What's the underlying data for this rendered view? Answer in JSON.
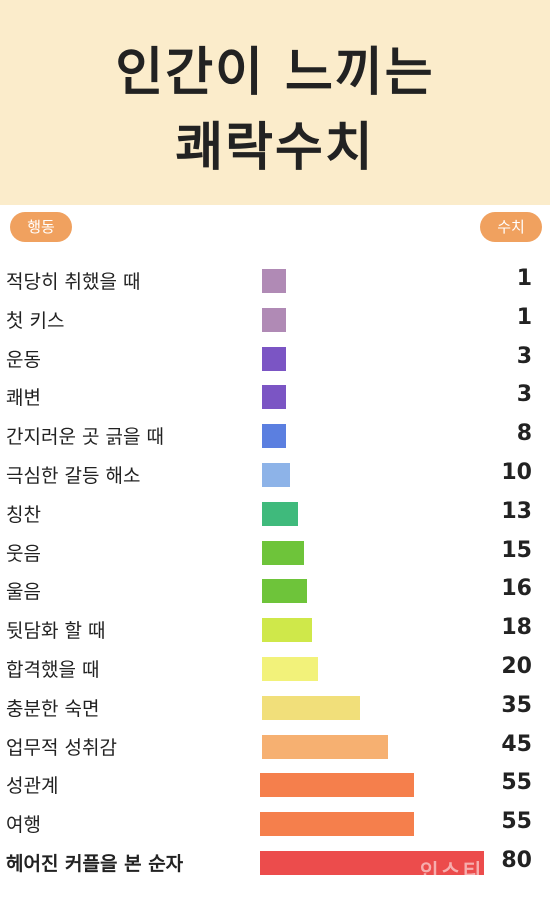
{
  "title": {
    "line1": "인간이 느끼는",
    "line2": "쾌락수치"
  },
  "columns": {
    "left": "행동",
    "right": "수치"
  },
  "watermark": "인스티",
  "chart_data": {
    "type": "bar",
    "orientation": "horizontal",
    "categories": [
      "적당히 취했을 때",
      "첫 키스",
      "운동",
      "쾌변",
      "간지러운 곳 긁을 때",
      "극심한 갈등 해소",
      "칭찬",
      "웃음",
      "울음",
      "뒷담화 할 때",
      "합격했을 때",
      "충분한 숙면",
      "업무적 성취감",
      "성관계",
      "여행",
      "헤어진 커플을 본 순자"
    ],
    "values": [
      1,
      1,
      3,
      3,
      8,
      10,
      13,
      15,
      16,
      18,
      20,
      35,
      45,
      55,
      55,
      80
    ],
    "colors": [
      "#b08ab5",
      "#b08ab5",
      "#7b55c4",
      "#7b55c4",
      "#5b7fe0",
      "#8db3e8",
      "#3fba7c",
      "#6ec43a",
      "#6ec43a",
      "#cfe84a",
      "#f2f27a",
      "#f1df7a",
      "#f6b071",
      "#f57f4c",
      "#f57f4c",
      "#ec4c4c"
    ]
  }
}
